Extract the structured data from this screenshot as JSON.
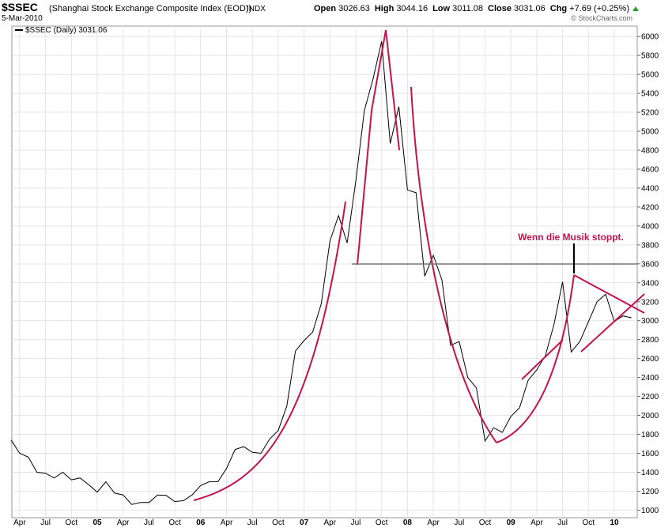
{
  "header": {
    "symbol": "$SSEC",
    "description": "(Shanghai Stock Exchange Composite Index (EOD))",
    "exchange": "INDX",
    "date": "5-Mar-2010",
    "quote": [
      {
        "label": "Open",
        "value": "3026.63"
      },
      {
        "label": "High",
        "value": "3044.16"
      },
      {
        "label": "Low",
        "value": "3011.08"
      },
      {
        "label": "Close",
        "value": "3031.06"
      },
      {
        "label": "Chg",
        "value": "+7.69 (+0.25%)"
      }
    ],
    "credit": "© StockCharts.com"
  },
  "chart_data": {
    "type": "line",
    "annotations": [
      "Wenn die Musik stoppt."
    ],
    "categories": [
      null,
      "Apr",
      null,
      null,
      "Jul",
      null,
      null,
      "Oct",
      null,
      null,
      "05",
      null,
      null,
      "Apr",
      null,
      null,
      "Jul",
      null,
      null,
      "Oct",
      null,
      null,
      "06",
      null,
      null,
      "Apr",
      null,
      null,
      "Jul",
      null,
      null,
      "Oct",
      null,
      null,
      "07",
      null,
      null,
      "Apr",
      null,
      null,
      "Jul",
      null,
      null,
      "Oct",
      null,
      null,
      "08",
      null,
      null,
      "Apr",
      null,
      null,
      "Jul",
      null,
      null,
      "Oct",
      null,
      null,
      "09",
      null,
      null,
      "Apr",
      null,
      null,
      "Jul",
      null,
      null,
      "Oct",
      null,
      null,
      "10",
      null,
      null
    ],
    "series": [
      {
        "name": "$SSEC (Daily) 3031.06",
        "color": "#000000",
        "values": [
          1740,
          1600,
          1560,
          1400,
          1390,
          1340,
          1400,
          1320,
          1340,
          1270,
          1190,
          1300,
          1180,
          1160,
          1060,
          1080,
          1080,
          1160,
          1155,
          1090,
          1100,
          1160,
          1260,
          1300,
          1300,
          1440,
          1640,
          1670,
          1610,
          1600,
          1750,
          1840,
          2100,
          2680,
          2790,
          2880,
          3180,
          3840,
          4110,
          3820,
          4470,
          5220,
          5550,
          5950,
          4870,
          5260,
          4380,
          4350,
          3470,
          3690,
          3430,
          2740,
          2780,
          2400,
          2290,
          1730,
          1870,
          1820,
          1990,
          2080,
          2370,
          2480,
          2630,
          2960,
          3410,
          2670,
          2780,
          2990,
          3200,
          3280,
          2990,
          3050,
          3031
        ]
      }
    ],
    "ylim": [
      920,
      6110
    ],
    "yticks": [
      1000,
      1200,
      1400,
      1600,
      1800,
      2000,
      2200,
      2400,
      2600,
      2800,
      3000,
      3200,
      3400,
      3600,
      3800,
      4000,
      4200,
      4400,
      4600,
      4800,
      5000,
      5200,
      5400,
      5600,
      5800,
      6000
    ],
    "grid": true
  }
}
